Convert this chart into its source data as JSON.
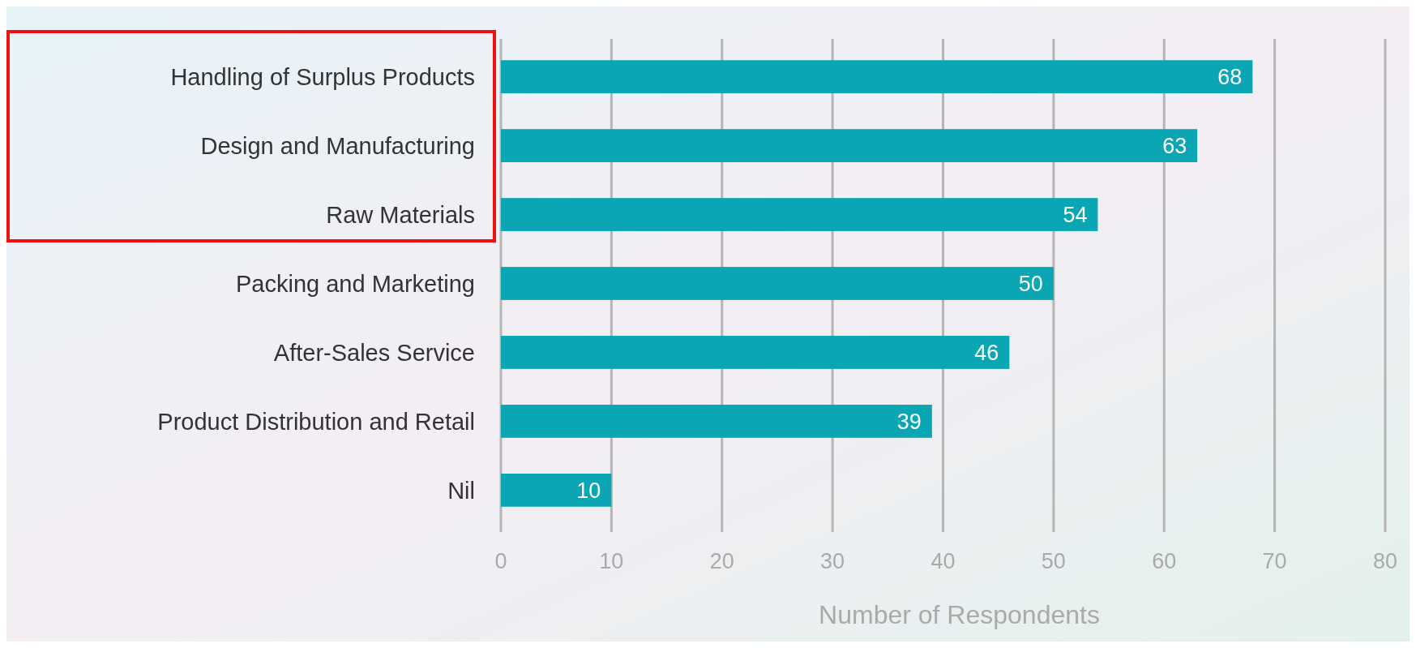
{
  "chart_data": {
    "type": "bar",
    "orientation": "horizontal",
    "xlabel": "Number of Respondents",
    "categories": [
      "Handling of Surplus Products",
      "Design and Manufacturing",
      "Raw Materials",
      "Packing and Marketing",
      "After-Sales Service",
      "Product Distribution and Retail",
      "Nil"
    ],
    "values": [
      68,
      63,
      54,
      50,
      46,
      39,
      10
    ],
    "color": "#0aa6b4",
    "xlim": [
      0,
      80
    ],
    "xticks": [
      0,
      10,
      20,
      30,
      40,
      50,
      60,
      70,
      80
    ],
    "grid": "x",
    "data_labels": true
  }
}
